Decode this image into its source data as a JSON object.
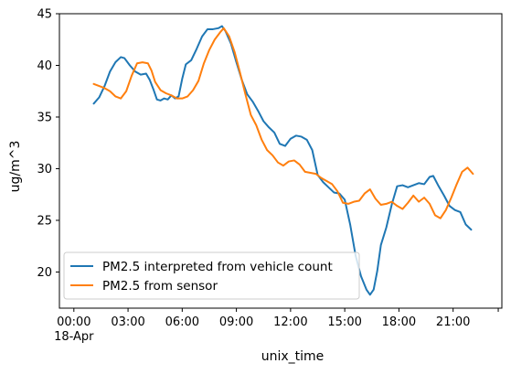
{
  "chart_data": {
    "type": "line",
    "title": "",
    "xlabel": "unix_time",
    "ylabel": "ug/m^3",
    "xlim": [
      0.8,
      23.7
    ],
    "ylim": [
      16.5,
      45
    ],
    "grid": false,
    "legend_position": "lower-left",
    "x_unit": "hour of day (18-Apr)",
    "x_ticks": [
      {
        "x": 0,
        "label": "00:00",
        "sublabel": "18-Apr"
      },
      {
        "x": 3,
        "label": "03:00"
      },
      {
        "x": 6,
        "label": "06:00"
      },
      {
        "x": 9,
        "label": "09:00"
      },
      {
        "x": 12,
        "label": "12:00"
      },
      {
        "x": 15,
        "label": "15:00"
      },
      {
        "x": 18,
        "label": "18:00"
      },
      {
        "x": 21,
        "label": "21:00"
      }
    ],
    "y_ticks": [
      20,
      25,
      30,
      35,
      40,
      45
    ],
    "series": [
      {
        "name": "PM2.5 interpreted from vehicle count",
        "color": "#1f77b4",
        "points": [
          [
            1.1,
            36.3
          ],
          [
            1.4,
            36.9
          ],
          [
            1.7,
            38.0
          ],
          [
            2.0,
            39.4
          ],
          [
            2.3,
            40.3
          ],
          [
            2.6,
            40.8
          ],
          [
            2.8,
            40.7
          ],
          [
            3.1,
            40.0
          ],
          [
            3.4,
            39.4
          ],
          [
            3.7,
            39.1
          ],
          [
            4.0,
            39.2
          ],
          [
            4.2,
            38.6
          ],
          [
            4.4,
            37.7
          ],
          [
            4.6,
            36.7
          ],
          [
            4.8,
            36.6
          ],
          [
            5.0,
            36.8
          ],
          [
            5.2,
            36.7
          ],
          [
            5.4,
            37.1
          ],
          [
            5.6,
            36.8
          ],
          [
            5.8,
            37.0
          ],
          [
            6.0,
            38.7
          ],
          [
            6.2,
            40.1
          ],
          [
            6.5,
            40.5
          ],
          [
            6.8,
            41.6
          ],
          [
            7.1,
            42.8
          ],
          [
            7.4,
            43.5
          ],
          [
            7.7,
            43.5
          ],
          [
            8.0,
            43.6
          ],
          [
            8.2,
            43.8
          ],
          [
            8.4,
            43.3
          ],
          [
            8.7,
            42.1
          ],
          [
            9.0,
            40.3
          ],
          [
            9.3,
            38.6
          ],
          [
            9.6,
            37.2
          ],
          [
            9.9,
            36.5
          ],
          [
            10.2,
            35.6
          ],
          [
            10.5,
            34.6
          ],
          [
            10.8,
            34.0
          ],
          [
            11.1,
            33.5
          ],
          [
            11.4,
            32.4
          ],
          [
            11.7,
            32.2
          ],
          [
            12.0,
            32.9
          ],
          [
            12.3,
            33.2
          ],
          [
            12.6,
            33.1
          ],
          [
            12.9,
            32.8
          ],
          [
            13.2,
            31.8
          ],
          [
            13.5,
            29.4
          ],
          [
            13.8,
            28.7
          ],
          [
            14.1,
            28.2
          ],
          [
            14.4,
            27.7
          ],
          [
            14.7,
            27.6
          ],
          [
            15.0,
            27.0
          ],
          [
            15.3,
            24.6
          ],
          [
            15.6,
            21.6
          ],
          [
            15.9,
            19.6
          ],
          [
            16.2,
            18.3
          ],
          [
            16.4,
            17.8
          ],
          [
            16.6,
            18.3
          ],
          [
            16.8,
            20.1
          ],
          [
            17.0,
            22.6
          ],
          [
            17.3,
            24.3
          ],
          [
            17.6,
            26.5
          ],
          [
            17.9,
            28.3
          ],
          [
            18.2,
            28.4
          ],
          [
            18.5,
            28.2
          ],
          [
            18.8,
            28.4
          ],
          [
            19.1,
            28.6
          ],
          [
            19.4,
            28.5
          ],
          [
            19.7,
            29.2
          ],
          [
            19.9,
            29.3
          ],
          [
            20.2,
            28.3
          ],
          [
            20.5,
            27.4
          ],
          [
            20.8,
            26.4
          ],
          [
            21.1,
            26.0
          ],
          [
            21.4,
            25.8
          ],
          [
            21.7,
            24.6
          ],
          [
            22.0,
            24.1
          ]
        ]
      },
      {
        "name": "PM2.5 from sensor",
        "color": "#ff7f0e",
        "points": [
          [
            1.1,
            38.2
          ],
          [
            1.4,
            38.0
          ],
          [
            1.7,
            37.8
          ],
          [
            2.0,
            37.5
          ],
          [
            2.3,
            37.0
          ],
          [
            2.6,
            36.8
          ],
          [
            2.9,
            37.5
          ],
          [
            3.2,
            39.0
          ],
          [
            3.5,
            40.2
          ],
          [
            3.8,
            40.3
          ],
          [
            4.1,
            40.2
          ],
          [
            4.3,
            39.5
          ],
          [
            4.5,
            38.4
          ],
          [
            4.8,
            37.6
          ],
          [
            5.1,
            37.3
          ],
          [
            5.4,
            37.1
          ],
          [
            5.7,
            36.8
          ],
          [
            6.0,
            36.8
          ],
          [
            6.3,
            37.0
          ],
          [
            6.6,
            37.6
          ],
          [
            6.9,
            38.5
          ],
          [
            7.2,
            40.2
          ],
          [
            7.5,
            41.5
          ],
          [
            7.8,
            42.5
          ],
          [
            8.1,
            43.2
          ],
          [
            8.3,
            43.6
          ],
          [
            8.6,
            42.8
          ],
          [
            8.9,
            41.3
          ],
          [
            9.2,
            39.3
          ],
          [
            9.5,
            37.2
          ],
          [
            9.8,
            35.2
          ],
          [
            10.1,
            34.2
          ],
          [
            10.4,
            32.8
          ],
          [
            10.7,
            31.8
          ],
          [
            11.0,
            31.3
          ],
          [
            11.3,
            30.6
          ],
          [
            11.6,
            30.3
          ],
          [
            11.9,
            30.7
          ],
          [
            12.2,
            30.8
          ],
          [
            12.5,
            30.4
          ],
          [
            12.8,
            29.7
          ],
          [
            13.1,
            29.6
          ],
          [
            13.4,
            29.5
          ],
          [
            13.7,
            29.1
          ],
          [
            14.0,
            28.8
          ],
          [
            14.3,
            28.5
          ],
          [
            14.6,
            27.8
          ],
          [
            14.9,
            26.7
          ],
          [
            15.2,
            26.6
          ],
          [
            15.5,
            26.8
          ],
          [
            15.8,
            26.9
          ],
          [
            16.1,
            27.6
          ],
          [
            16.4,
            28.0
          ],
          [
            16.7,
            27.1
          ],
          [
            17.0,
            26.5
          ],
          [
            17.3,
            26.6
          ],
          [
            17.6,
            26.8
          ],
          [
            17.9,
            26.4
          ],
          [
            18.2,
            26.1
          ],
          [
            18.5,
            26.7
          ],
          [
            18.8,
            27.4
          ],
          [
            19.1,
            26.8
          ],
          [
            19.4,
            27.2
          ],
          [
            19.7,
            26.6
          ],
          [
            20.0,
            25.5
          ],
          [
            20.3,
            25.2
          ],
          [
            20.6,
            26.0
          ],
          [
            20.9,
            27.2
          ],
          [
            21.2,
            28.5
          ],
          [
            21.5,
            29.7
          ],
          [
            21.8,
            30.1
          ],
          [
            22.1,
            29.5
          ]
        ]
      }
    ]
  }
}
